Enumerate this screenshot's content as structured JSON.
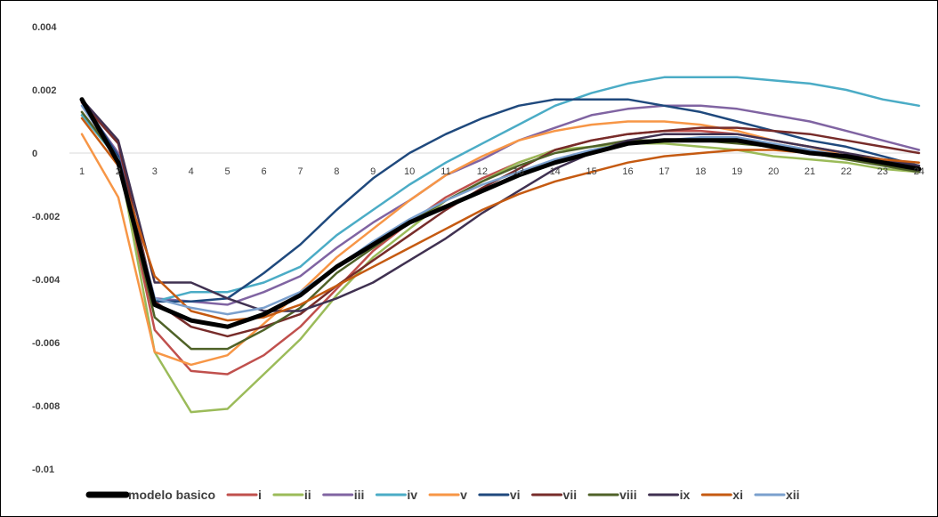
{
  "chart_data": {
    "type": "line",
    "title": "",
    "xlabel": "",
    "ylabel": "",
    "x": [
      1,
      2,
      3,
      4,
      5,
      6,
      7,
      8,
      9,
      10,
      11,
      12,
      13,
      14,
      15,
      16,
      17,
      18,
      19,
      20,
      21,
      22,
      23,
      24
    ],
    "x_tick_labels": [
      "1",
      "2",
      "3",
      "4",
      "5",
      "6",
      "7",
      "8",
      "9",
      "10",
      "11",
      "12",
      "13",
      "14",
      "15",
      "16",
      "17",
      "18",
      "19",
      "20",
      "21",
      "22",
      "23",
      "24"
    ],
    "ylim": [
      -0.01,
      0.004
    ],
    "y_ticks": [
      0.004,
      0.002,
      0,
      -0.002,
      -0.004,
      -0.006,
      -0.008,
      -0.01
    ],
    "y_tick_labels": [
      "0.004",
      "0.002",
      "0",
      "-0.002",
      "-0.004",
      "-0.006",
      "-0.008",
      "-0.01"
    ],
    "grid": "zero line only",
    "legend_position": "bottom",
    "series": [
      {
        "name": "modelo basico",
        "color": "#000000",
        "width": 5,
        "values": [
          0.0017,
          -0.0003,
          -0.0048,
          -0.0053,
          -0.0055,
          -0.0051,
          -0.0045,
          -0.0036,
          -0.0029,
          -0.0022,
          -0.0017,
          -0.0012,
          -0.0007,
          -0.0003,
          0.0,
          0.0003,
          0.0004,
          0.0004,
          0.0004,
          0.0002,
          0.0,
          -0.0001,
          -0.0003,
          -0.0005
        ]
      },
      {
        "name": "i",
        "color": "#C0504D",
        "width": 2.5,
        "values": [
          0.0013,
          -0.0002,
          -0.0056,
          -0.0069,
          -0.007,
          -0.0064,
          -0.0055,
          -0.0043,
          -0.0031,
          -0.0022,
          -0.0014,
          -0.0008,
          -0.0003,
          0.0001,
          0.0004,
          0.0006,
          0.0007,
          0.0007,
          0.0006,
          0.0004,
          0.0002,
          0.0,
          -0.0003,
          -0.0005
        ]
      },
      {
        "name": "ii",
        "color": "#9BBB59",
        "width": 2.5,
        "values": [
          0.0012,
          -0.0001,
          -0.0063,
          -0.0082,
          -0.0081,
          -0.007,
          -0.0059,
          -0.0045,
          -0.0033,
          -0.0024,
          -0.0015,
          -0.0009,
          -0.0003,
          0.0001,
          0.0002,
          0.0003,
          0.0003,
          0.0002,
          0.0001,
          -0.0001,
          -0.0002,
          -0.0003,
          -0.0005,
          -0.0006
        ]
      },
      {
        "name": "iii",
        "color": "#8064A2",
        "width": 2.5,
        "values": [
          0.0016,
          0.0,
          -0.0046,
          -0.0047,
          -0.0048,
          -0.0044,
          -0.0039,
          -0.003,
          -0.0022,
          -0.0015,
          -0.0007,
          -0.0002,
          0.0004,
          0.0008,
          0.0012,
          0.0014,
          0.0015,
          0.0015,
          0.0014,
          0.0012,
          0.001,
          0.0007,
          0.0004,
          0.0001
        ]
      },
      {
        "name": "iv",
        "color": "#4BACC6",
        "width": 2.5,
        "values": [
          0.0012,
          -0.0002,
          -0.0047,
          -0.0044,
          -0.0044,
          -0.0041,
          -0.0036,
          -0.0026,
          -0.0018,
          -0.001,
          -0.0003,
          0.0003,
          0.0009,
          0.0015,
          0.0019,
          0.0022,
          0.0024,
          0.0024,
          0.0024,
          0.0023,
          0.0022,
          0.002,
          0.0017,
          0.0015
        ]
      },
      {
        "name": "v",
        "color": "#F79646",
        "width": 2.5,
        "values": [
          0.0006,
          -0.0014,
          -0.0063,
          -0.0067,
          -0.0064,
          -0.0054,
          -0.0044,
          -0.0033,
          -0.0024,
          -0.0015,
          -0.0007,
          -0.0001,
          0.0004,
          0.0007,
          0.0009,
          0.001,
          0.001,
          0.0009,
          0.0007,
          0.0004,
          0.0002,
          -0.0001,
          -0.0003,
          -0.0004
        ]
      },
      {
        "name": "vi",
        "color": "#1F497D",
        "width": 2.5,
        "values": [
          0.0017,
          -0.0001,
          -0.0047,
          -0.0047,
          -0.0046,
          -0.0038,
          -0.0029,
          -0.0018,
          -0.0008,
          0.0,
          0.0006,
          0.0011,
          0.0015,
          0.0017,
          0.0017,
          0.0017,
          0.0015,
          0.0013,
          0.001,
          0.0007,
          0.0004,
          0.0002,
          -0.0001,
          -0.0004
        ]
      },
      {
        "name": "vii",
        "color": "#772C2A",
        "width": 2.5,
        "values": [
          0.0016,
          0.0003,
          -0.0047,
          -0.0055,
          -0.0058,
          -0.0055,
          -0.0051,
          -0.0042,
          -0.0034,
          -0.0026,
          -0.0018,
          -0.0011,
          -0.0005,
          0.0001,
          0.0004,
          0.0006,
          0.0007,
          0.0008,
          0.0008,
          0.0007,
          0.0006,
          0.0004,
          0.0002,
          0.0
        ]
      },
      {
        "name": "viii",
        "color": "#4F6228",
        "width": 2.5,
        "values": [
          0.0013,
          -0.0002,
          -0.0052,
          -0.0062,
          -0.0062,
          -0.0056,
          -0.0049,
          -0.0038,
          -0.003,
          -0.0022,
          -0.0015,
          -0.0009,
          -0.0004,
          0.0,
          0.0002,
          0.0004,
          0.0004,
          0.0004,
          0.0003,
          0.0002,
          0.0,
          -0.0002,
          -0.0004,
          -0.0006
        ]
      },
      {
        "name": "ix",
        "color": "#403151",
        "width": 2.5,
        "values": [
          0.0017,
          0.0004,
          -0.0041,
          -0.0041,
          -0.0046,
          -0.005,
          -0.005,
          -0.0046,
          -0.0041,
          -0.0034,
          -0.0027,
          -0.0019,
          -0.0012,
          -0.0005,
          0.0,
          0.0004,
          0.0006,
          0.0006,
          0.0006,
          0.0004,
          0.0002,
          0.0,
          -0.0002,
          -0.0004
        ]
      },
      {
        "name": "xi",
        "color": "#C55A11",
        "width": 2.5,
        "values": [
          0.0011,
          -0.0004,
          -0.0039,
          -0.005,
          -0.0053,
          -0.0052,
          -0.0048,
          -0.0042,
          -0.0036,
          -0.003,
          -0.0024,
          -0.0018,
          -0.0013,
          -0.0009,
          -0.0006,
          -0.0003,
          -0.0001,
          0.0,
          0.0001,
          0.0001,
          0.0,
          -0.0001,
          -0.0002,
          -0.0003
        ]
      },
      {
        "name": "xii",
        "color": "#7BA0CD",
        "width": 2.5,
        "values": [
          0.0015,
          -0.0002,
          -0.0046,
          -0.0049,
          -0.0051,
          -0.0049,
          -0.0044,
          -0.0036,
          -0.0028,
          -0.0021,
          -0.0015,
          -0.001,
          -0.0006,
          -0.0002,
          0.0001,
          0.0003,
          0.0004,
          0.0005,
          0.0005,
          0.0003,
          0.0001,
          -0.0001,
          -0.0003,
          -0.0005
        ]
      }
    ]
  }
}
